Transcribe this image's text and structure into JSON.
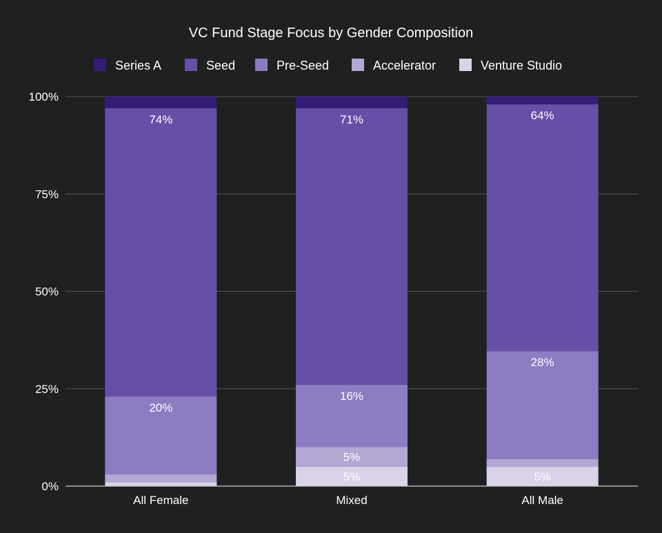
{
  "chart_data": {
    "type": "bar",
    "stacked": true,
    "normalized": true,
    "title": "VC Fund Stage Focus by Gender Composition",
    "xlabel": "",
    "ylabel": "",
    "ylim": [
      0,
      100
    ],
    "y_ticks": [
      "0%",
      "25%",
      "50%",
      "75%",
      "100%"
    ],
    "y_tick_values": [
      0,
      25,
      50,
      75,
      100
    ],
    "grid": true,
    "legend_position": "top",
    "categories": [
      "All Female",
      "Mixed",
      "All Male"
    ],
    "series": [
      {
        "name": "Venture Studio",
        "values": [
          1,
          5,
          5
        ],
        "labels": [
          "",
          "5%",
          "5%"
        ],
        "color": "#d9d2e9"
      },
      {
        "name": "Accelerator",
        "values": [
          2,
          5,
          2
        ],
        "labels": [
          "",
          "5%",
          ""
        ],
        "color": "#b4a7d6"
      },
      {
        "name": "Pre-Seed",
        "values": [
          20,
          16,
          28
        ],
        "labels": [
          "20%",
          "16%",
          "28%"
        ],
        "color": "#8e7cc3"
      },
      {
        "name": "Seed",
        "values": [
          74,
          71,
          64
        ],
        "labels": [
          "74%",
          "71%",
          "64%"
        ],
        "color": "#674ea7"
      },
      {
        "name": "Series A",
        "values": [
          3,
          3,
          2
        ],
        "labels": [
          "",
          "",
          ""
        ],
        "color": "#351c75"
      }
    ],
    "legend_order": [
      "Series A",
      "Seed",
      "Pre-Seed",
      "Accelerator",
      "Venture Studio"
    ],
    "colors": {
      "background": "#1f2020",
      "text": "#ffffff",
      "grid": "#555555",
      "axis": "#cccccc"
    }
  }
}
